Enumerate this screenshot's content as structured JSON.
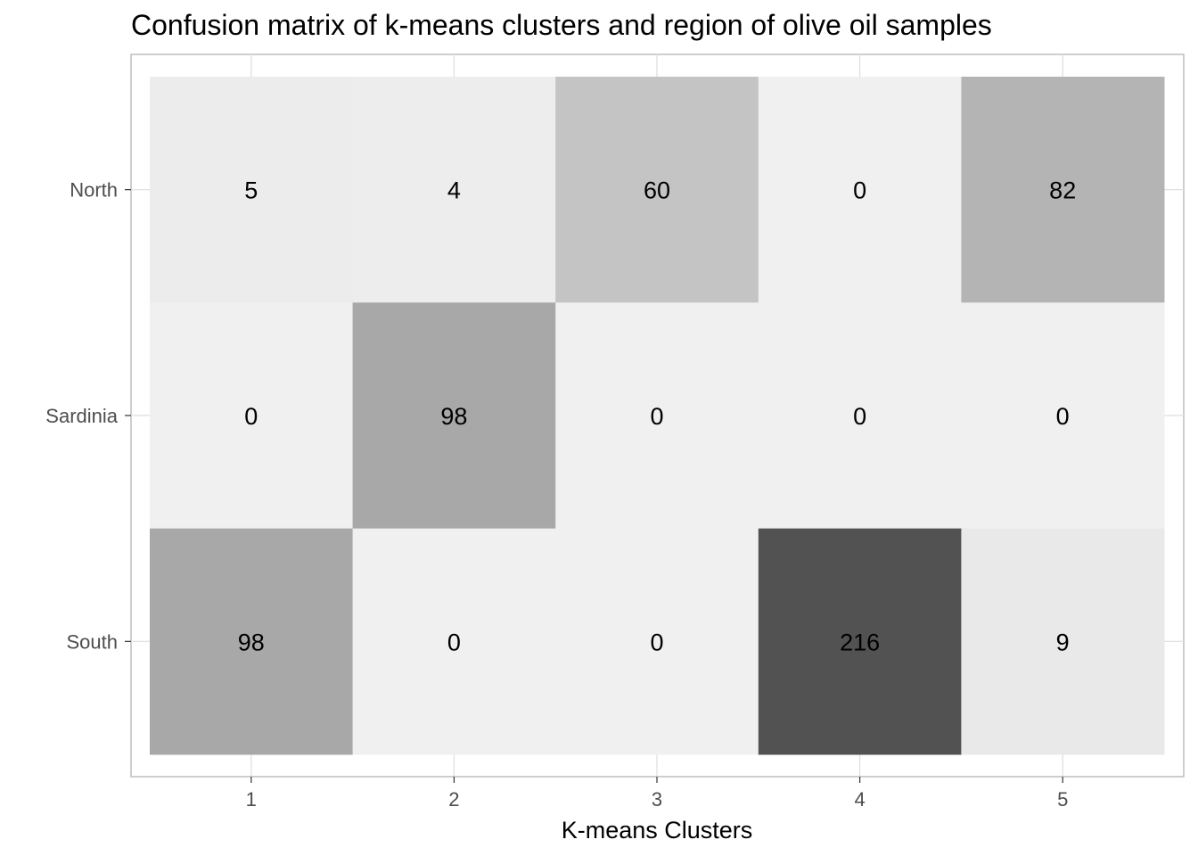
{
  "chart_data": {
    "type": "heatmap",
    "title": "Confusion matrix of k-means clusters and region of olive oil samples",
    "xlabel": "K-means Clusters",
    "ylabel": "",
    "x_categories": [
      "1",
      "2",
      "3",
      "4",
      "5"
    ],
    "y_categories": [
      "North",
      "Sardinia",
      "South"
    ],
    "values": [
      [
        5,
        4,
        60,
        0,
        82
      ],
      [
        0,
        98,
        0,
        0,
        0
      ],
      [
        98,
        0,
        0,
        216,
        9
      ]
    ],
    "color_scale": {
      "low": "#f0f0f0",
      "high": "#525252"
    },
    "grid": true,
    "legend": "none"
  }
}
